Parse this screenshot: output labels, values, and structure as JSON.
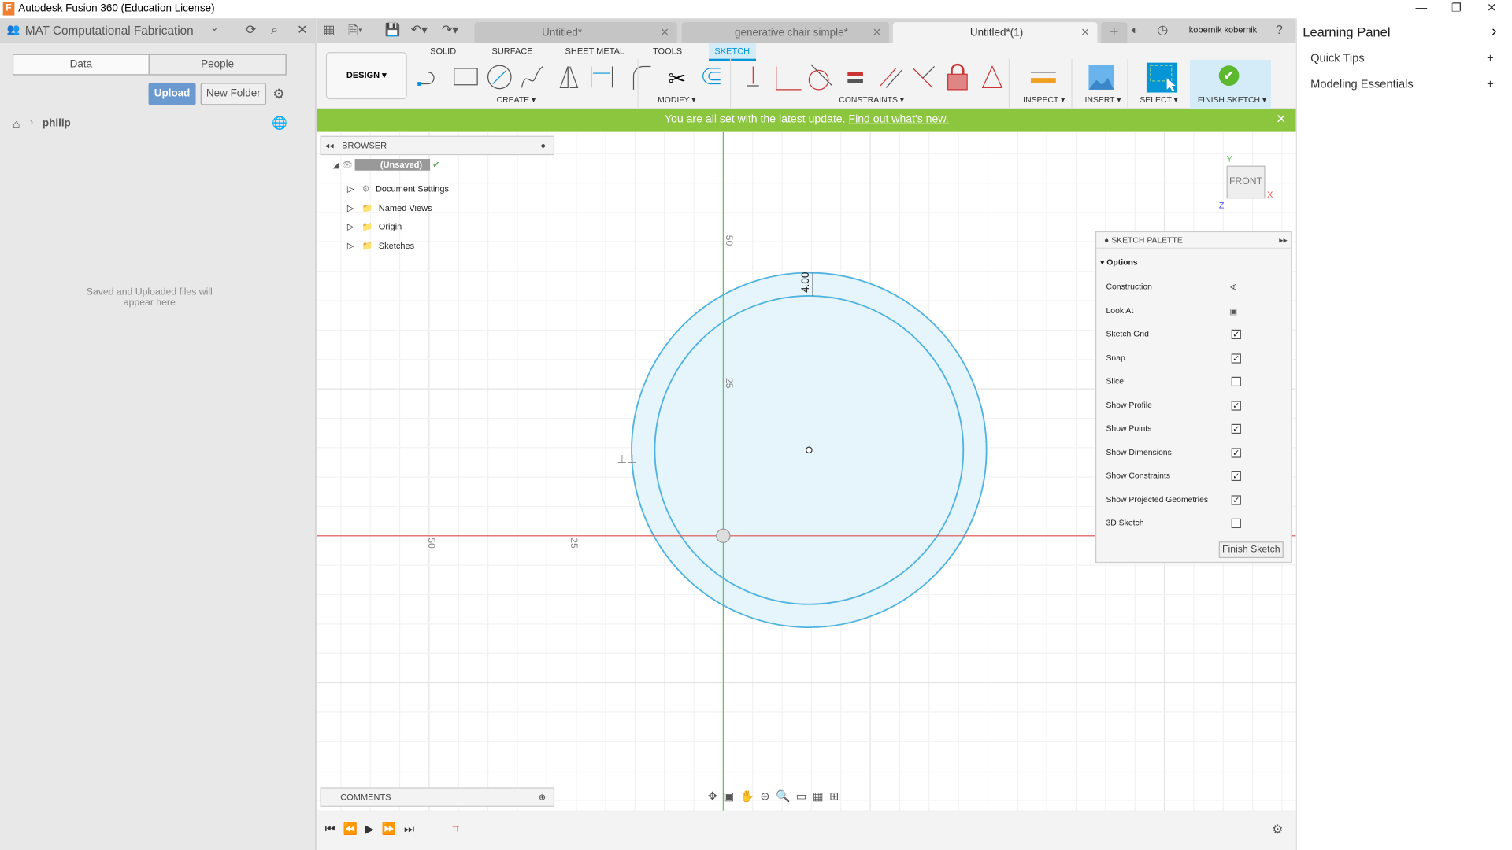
{
  "window": {
    "title": "Autodesk Fusion 360 (Education License)",
    "logo": "F"
  },
  "data_panel": {
    "project": "MAT Computational Fabrication",
    "tabs": [
      "Data",
      "People"
    ],
    "upload": "Upload",
    "new_folder": "New Folder",
    "breadcrumb": "philip",
    "empty": "Saved and Uploaded files will appear here"
  },
  "doc_tabs": [
    {
      "label": "Untitled*",
      "active": false
    },
    {
      "label": "generative chair simple*",
      "active": false
    },
    {
      "label": "Untitled*(1)",
      "active": true
    }
  ],
  "user": "kobernik kobernik",
  "toolbar": {
    "workspace": "DESIGN",
    "tabs": [
      "SOLID",
      "SURFACE",
      "SHEET METAL",
      "TOOLS",
      "SKETCH"
    ],
    "active_tab": "SKETCH",
    "groups": [
      "CREATE",
      "MODIFY",
      "CONSTRAINTS",
      "INSPECT",
      "INSERT",
      "SELECT",
      "FINISH SKETCH"
    ]
  },
  "banner": {
    "text": "You are all set with the latest update.",
    "link": "Find out what's new."
  },
  "browser": {
    "title": "BROWSER",
    "root": "(Unsaved)",
    "items": [
      "Document Settings",
      "Named Views",
      "Origin",
      "Sketches"
    ]
  },
  "comments": {
    "title": "COMMENTS"
  },
  "viewcube": {
    "face": "FRONT",
    "axes": [
      "Y",
      "X",
      "Z"
    ]
  },
  "canvas": {
    "labels": [
      "50",
      "25",
      "50",
      "25"
    ],
    "dimension": "4.00"
  },
  "sketch_palette": {
    "title": "SKETCH PALETTE",
    "section": "Options",
    "rows": [
      {
        "label": "Construction",
        "type": "icon"
      },
      {
        "label": "Look At",
        "type": "icon"
      },
      {
        "label": "Sketch Grid",
        "checked": true
      },
      {
        "label": "Snap",
        "checked": true
      },
      {
        "label": "Slice",
        "checked": false
      },
      {
        "label": "Show Profile",
        "checked": true
      },
      {
        "label": "Show Points",
        "checked": true
      },
      {
        "label": "Show Dimensions",
        "checked": true
      },
      {
        "label": "Show Constraints",
        "checked": true
      },
      {
        "label": "Show Projected Geometries",
        "checked": true
      },
      {
        "label": "3D Sketch",
        "checked": false
      }
    ],
    "finish": "Finish Sketch"
  },
  "learning_panel": {
    "title": "Learning Panel",
    "items": [
      "Quick Tips",
      "Modeling Essentials"
    ]
  },
  "colors": {
    "accent": "#0696d7",
    "banner": "#8cc63f",
    "sketch": "#4fb3e0",
    "x_axis": "#e05050",
    "y_axis": "#5cc65c"
  }
}
